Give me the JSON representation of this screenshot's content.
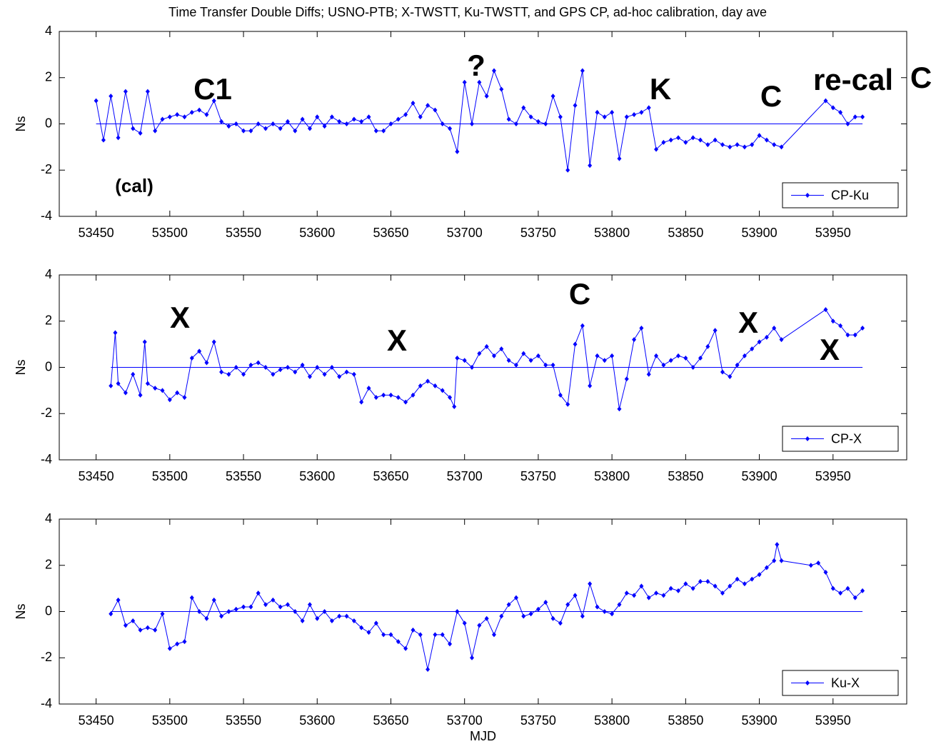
{
  "chart_data": [
    {
      "type": "line",
      "title": "Time Transfer Double Diffs; USNO-PTB; X-TWSTT, Ku-TWSTT, and GPS CP, ad-hoc calibration, day ave",
      "ylabel": "Ns",
      "xlim": [
        53425,
        54000
      ],
      "ylim": [
        -4,
        4
      ],
      "xticks": [
        53450,
        53500,
        53550,
        53600,
        53650,
        53700,
        53750,
        53800,
        53850,
        53900,
        53950
      ],
      "yticks": [
        -4,
        -2,
        0,
        2,
        4
      ],
      "hline": 0,
      "legend": "lower right",
      "annotations": [
        "C1",
        "?",
        "K",
        "C",
        "re-cal",
        "C",
        "(cal)"
      ],
      "x": [
        53450,
        53455,
        53460,
        53465,
        53470,
        53475,
        53480,
        53485,
        53490,
        53495,
        53500,
        53505,
        53510,
        53515,
        53520,
        53525,
        53530,
        53535,
        53540,
        53545,
        53550,
        53555,
        53560,
        53565,
        53570,
        53575,
        53580,
        53585,
        53590,
        53595,
        53600,
        53605,
        53610,
        53615,
        53620,
        53625,
        53630,
        53635,
        53640,
        53645,
        53650,
        53655,
        53660,
        53665,
        53670,
        53675,
        53680,
        53685,
        53690,
        53695,
        53700,
        53705,
        53710,
        53715,
        53720,
        53725,
        53730,
        53735,
        53740,
        53745,
        53750,
        53755,
        53760,
        53765,
        53770,
        53775,
        53780,
        53785,
        53790,
        53795,
        53800,
        53805,
        53810,
        53815,
        53820,
        53825,
        53830,
        53835,
        53840,
        53845,
        53850,
        53855,
        53860,
        53865,
        53870,
        53875,
        53880,
        53885,
        53890,
        53895,
        53900,
        53905,
        53910,
        53915,
        53945,
        53950,
        53955,
        53960,
        53965,
        53970
      ],
      "series": [
        {
          "name": "CP-Ku",
          "color": "#0000ff",
          "values": [
            1.0,
            -0.7,
            1.2,
            -0.6,
            1.4,
            -0.2,
            -0.4,
            1.4,
            -0.3,
            0.2,
            0.3,
            0.4,
            0.3,
            0.5,
            0.6,
            0.4,
            1.0,
            0.1,
            -0.1,
            0.0,
            -0.3,
            -0.3,
            0.0,
            -0.2,
            0.0,
            -0.2,
            0.1,
            -0.3,
            0.2,
            -0.2,
            0.3,
            -0.1,
            0.3,
            0.1,
            0.0,
            0.2,
            0.1,
            0.3,
            -0.3,
            -0.3,
            0.0,
            0.2,
            0.4,
            0.9,
            0.3,
            0.8,
            0.6,
            0.0,
            -0.2,
            -1.2,
            1.8,
            0.0,
            1.8,
            1.2,
            2.3,
            1.5,
            0.2,
            0.0,
            0.7,
            0.3,
            0.1,
            0.0,
            1.2,
            0.3,
            -2.0,
            0.8,
            2.3,
            -1.8,
            0.5,
            0.3,
            0.5,
            -1.5,
            0.3,
            0.4,
            0.5,
            0.7,
            -1.1,
            -0.8,
            -0.7,
            -0.6,
            -0.8,
            -0.6,
            -0.7,
            -0.9,
            -0.7,
            -0.9,
            -1.0,
            -0.9,
            -1.0,
            -0.9,
            -0.5,
            -0.7,
            -0.9,
            -1.0,
            1.0,
            0.7,
            0.5,
            0.0,
            0.3,
            0.3
          ]
        }
      ]
    },
    {
      "type": "line",
      "ylabel": "Ns",
      "xlim": [
        53425,
        54000
      ],
      "ylim": [
        -4,
        4
      ],
      "xticks": [
        53450,
        53500,
        53550,
        53600,
        53650,
        53700,
        53750,
        53800,
        53850,
        53900,
        53950
      ],
      "yticks": [
        -4,
        -2,
        0,
        2,
        4
      ],
      "hline": 0,
      "legend": "lower right",
      "annotations": [
        "X",
        "X",
        "C",
        "X",
        "X"
      ],
      "x": [
        53460,
        53463,
        53465,
        53470,
        53475,
        53480,
        53483,
        53485,
        53490,
        53495,
        53500,
        53505,
        53510,
        53515,
        53520,
        53525,
        53530,
        53535,
        53540,
        53545,
        53550,
        53555,
        53560,
        53565,
        53570,
        53575,
        53580,
        53585,
        53590,
        53595,
        53600,
        53605,
        53610,
        53615,
        53620,
        53625,
        53630,
        53635,
        53640,
        53645,
        53650,
        53655,
        53660,
        53665,
        53670,
        53675,
        53680,
        53685,
        53690,
        53693,
        53695,
        53700,
        53705,
        53710,
        53715,
        53720,
        53725,
        53730,
        53735,
        53740,
        53745,
        53750,
        53755,
        53760,
        53765,
        53770,
        53775,
        53780,
        53785,
        53790,
        53795,
        53800,
        53805,
        53810,
        53815,
        53820,
        53825,
        53830,
        53835,
        53840,
        53845,
        53850,
        53855,
        53860,
        53865,
        53870,
        53875,
        53880,
        53885,
        53890,
        53895,
        53900,
        53905,
        53910,
        53915,
        53945,
        53950,
        53955,
        53960,
        53965,
        53970
      ],
      "series": [
        {
          "name": "CP-X",
          "color": "#0000ff",
          "values": [
            -0.8,
            1.5,
            -0.7,
            -1.1,
            -0.3,
            -1.2,
            1.1,
            -0.7,
            -0.9,
            -1.0,
            -1.4,
            -1.1,
            -1.3,
            0.4,
            0.7,
            0.2,
            1.1,
            -0.2,
            -0.3,
            0.0,
            -0.3,
            0.1,
            0.2,
            0.0,
            -0.3,
            -0.1,
            0.0,
            -0.2,
            0.1,
            -0.4,
            0.0,
            -0.3,
            0.0,
            -0.4,
            -0.2,
            -0.3,
            -1.5,
            -0.9,
            -1.3,
            -1.2,
            -1.2,
            -1.3,
            -1.5,
            -1.2,
            -0.8,
            -0.6,
            -0.8,
            -1.0,
            -1.3,
            -1.7,
            0.4,
            0.3,
            0.0,
            0.6,
            0.9,
            0.5,
            0.8,
            0.3,
            0.1,
            0.6,
            0.3,
            0.5,
            0.1,
            0.1,
            -1.2,
            -1.6,
            1.0,
            1.8,
            -0.8,
            0.5,
            0.3,
            0.5,
            -1.8,
            -0.5,
            1.2,
            1.7,
            -0.3,
            0.5,
            0.1,
            0.3,
            0.5,
            0.4,
            0.0,
            0.4,
            0.9,
            1.6,
            -0.2,
            -0.4,
            0.1,
            0.5,
            0.8,
            1.1,
            1.3,
            1.7,
            1.2,
            2.5,
            2.0,
            1.8,
            1.4,
            1.4,
            1.7
          ]
        }
      ]
    },
    {
      "type": "line",
      "ylabel": "Ns",
      "xlabel": "MJD",
      "xlim": [
        53425,
        54000
      ],
      "ylim": [
        -4,
        4
      ],
      "xticks": [
        53450,
        53500,
        53550,
        53600,
        53650,
        53700,
        53750,
        53800,
        53850,
        53900,
        53950
      ],
      "yticks": [
        -4,
        -2,
        0,
        2,
        4
      ],
      "hline": 0,
      "legend": "lower right",
      "x": [
        53460,
        53465,
        53470,
        53475,
        53480,
        53485,
        53490,
        53495,
        53500,
        53505,
        53510,
        53515,
        53520,
        53525,
        53530,
        53535,
        53540,
        53545,
        53550,
        53555,
        53560,
        53565,
        53570,
        53575,
        53580,
        53585,
        53590,
        53595,
        53600,
        53605,
        53610,
        53615,
        53620,
        53625,
        53630,
        53635,
        53640,
        53645,
        53650,
        53655,
        53660,
        53665,
        53670,
        53675,
        53680,
        53685,
        53690,
        53695,
        53700,
        53705,
        53710,
        53715,
        53720,
        53725,
        53730,
        53735,
        53740,
        53745,
        53750,
        53755,
        53760,
        53765,
        53770,
        53775,
        53780,
        53785,
        53790,
        53795,
        53800,
        53805,
        53810,
        53815,
        53820,
        53825,
        53830,
        53835,
        53840,
        53845,
        53850,
        53855,
        53860,
        53865,
        53870,
        53875,
        53880,
        53885,
        53890,
        53895,
        53900,
        53905,
        53910,
        53912,
        53915,
        53935,
        53940,
        53945,
        53950,
        53955,
        53960,
        53965,
        53970
      ],
      "series": [
        {
          "name": "Ku-X",
          "color": "#0000ff",
          "values": [
            -0.1,
            0.5,
            -0.6,
            -0.4,
            -0.8,
            -0.7,
            -0.8,
            -0.1,
            -1.6,
            -1.4,
            -1.3,
            0.6,
            0.0,
            -0.3,
            0.5,
            -0.2,
            0.0,
            0.1,
            0.2,
            0.2,
            0.8,
            0.3,
            0.5,
            0.2,
            0.3,
            0.0,
            -0.4,
            0.3,
            -0.3,
            0.0,
            -0.4,
            -0.2,
            -0.2,
            -0.4,
            -0.7,
            -0.9,
            -0.5,
            -1.0,
            -1.0,
            -1.3,
            -1.6,
            -0.8,
            -1.0,
            -2.5,
            -1.0,
            -1.0,
            -1.4,
            0.0,
            -0.5,
            -2.0,
            -0.6,
            -0.3,
            -1.0,
            -0.2,
            0.3,
            0.6,
            -0.2,
            -0.1,
            0.1,
            0.4,
            -0.3,
            -0.5,
            0.3,
            0.7,
            -0.2,
            1.2,
            0.2,
            0.0,
            -0.1,
            0.3,
            0.8,
            0.7,
            1.1,
            0.6,
            0.8,
            0.7,
            1.0,
            0.9,
            1.2,
            1.0,
            1.3,
            1.3,
            1.1,
            0.8,
            1.1,
            1.4,
            1.2,
            1.4,
            1.6,
            1.9,
            2.2,
            2.9,
            2.2,
            2.0,
            2.1,
            1.7,
            1.0,
            0.8,
            1.0,
            0.6,
            0.9
          ]
        }
      ]
    }
  ]
}
